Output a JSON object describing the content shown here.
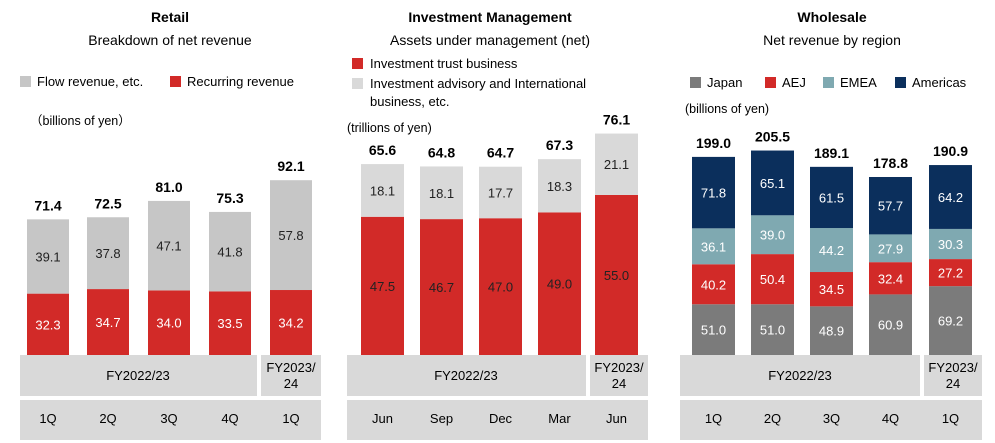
{
  "colors": {
    "red": "#d22a28",
    "gray_light": "#c6c6c6",
    "gray_dark": "#7b7b7b",
    "teal": "#7fa9b1",
    "navy": "#0b2f5c",
    "band": "#d9d9d9"
  },
  "chart_data": [
    {
      "type": "bar",
      "stacked": true,
      "title": "Retail",
      "subtitle": "Breakdown of net revenue",
      "unit": "（billions of yen）",
      "ylim": [
        0,
        100
      ],
      "legend": [
        "Flow revenue, etc.",
        "Recurring revenue"
      ],
      "legend_placement": "top",
      "period_groups": [
        {
          "label": "FY2022/23",
          "count": 4
        },
        {
          "label": "FY2023/\n24",
          "count": 1
        }
      ],
      "categories": [
        "1Q",
        "2Q",
        "3Q",
        "4Q",
        "1Q"
      ],
      "series": [
        {
          "name": "Recurring revenue",
          "color": "#d22a28",
          "label_color": "#ffffff",
          "values": [
            32.3,
            34.7,
            34.0,
            33.5,
            34.2
          ]
        },
        {
          "name": "Flow revenue, etc.",
          "color": "#c6c6c6",
          "label_color": "#222222",
          "values": [
            39.1,
            37.8,
            47.1,
            41.8,
            57.8
          ]
        }
      ],
      "totals": [
        71.4,
        72.5,
        81.0,
        75.3,
        92.1
      ]
    },
    {
      "type": "bar",
      "stacked": true,
      "title": "Investment Management",
      "subtitle": "Assets under management (net)",
      "unit": "(trillions of yen)",
      "ylim": [
        0,
        82
      ],
      "legend": [
        "Investment trust business",
        "Investment advisory and International\nbusiness, etc."
      ],
      "legend_placement": "top",
      "period_groups": [
        {
          "label": "FY2022/23",
          "count": 4
        },
        {
          "label": "FY2023/\n24",
          "count": 1
        }
      ],
      "categories": [
        "Jun",
        "Sep",
        "Dec",
        "Mar",
        "Jun"
      ],
      "series": [
        {
          "name": "Investment trust business",
          "color": "#d22a28",
          "label_color": "#222222",
          "values": [
            47.5,
            46.7,
            47.0,
            49.0,
            55.0
          ]
        },
        {
          "name": "Investment advisory and International\nbusiness, etc.",
          "color": "#d9d9d9",
          "label_color": "#222222",
          "values": [
            18.1,
            18.1,
            17.7,
            18.3,
            21.1
          ]
        }
      ],
      "totals": [
        65.6,
        64.8,
        64.7,
        67.3,
        76.1
      ]
    },
    {
      "type": "bar",
      "stacked": true,
      "title": "Wholesale",
      "subtitle": "Net revenue by region",
      "unit": "(billions of yen)",
      "ylim": [
        0,
        215
      ],
      "legend": [
        "Japan",
        "AEJ",
        "EMEA",
        "Americas"
      ],
      "legend_placement": "top",
      "period_groups": [
        {
          "label": "FY2022/23",
          "count": 4
        },
        {
          "label": "FY2023/\n24",
          "count": 1
        }
      ],
      "categories": [
        "1Q",
        "2Q",
        "3Q",
        "4Q",
        "1Q"
      ],
      "series": [
        {
          "name": "Japan",
          "color": "#7b7b7b",
          "label_color": "#ffffff",
          "values": [
            51.0,
            51.0,
            48.9,
            60.9,
            69.2
          ]
        },
        {
          "name": "AEJ",
          "color": "#d22a28",
          "label_color": "#ffffff",
          "values": [
            40.2,
            50.4,
            34.5,
            32.4,
            27.2
          ]
        },
        {
          "name": "EMEA",
          "color": "#7fa9b1",
          "label_color": "#ffffff",
          "values": [
            36.1,
            39.0,
            44.2,
            27.9,
            30.3
          ]
        },
        {
          "name": "Americas",
          "color": "#0b2f5c",
          "label_color": "#ffffff",
          "values": [
            71.8,
            65.1,
            61.5,
            57.7,
            64.2
          ]
        }
      ],
      "totals": [
        199.0,
        205.5,
        189.1,
        178.8,
        190.9
      ]
    }
  ]
}
